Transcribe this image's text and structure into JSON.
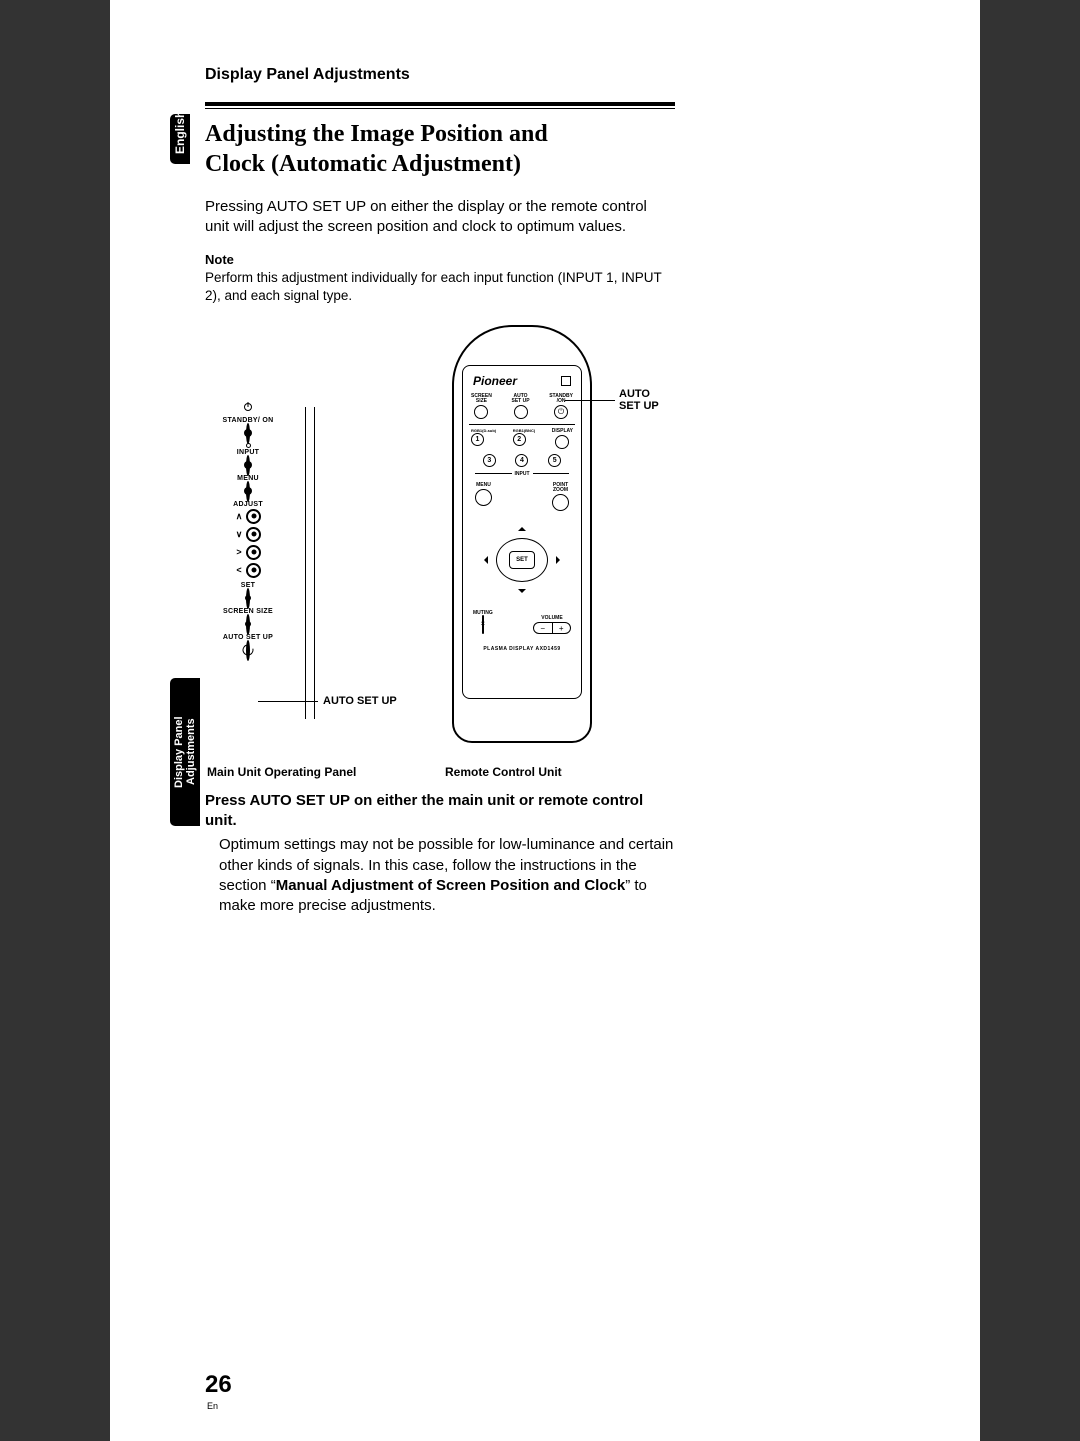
{
  "header": "Display Panel Adjustments",
  "title_line1": "Adjusting the Image Position and",
  "title_line2": "Clock (Automatic Adjustment)",
  "intro": "Pressing AUTO SET UP on either the display or the remote control unit will adjust the screen position and clock to optimum values.",
  "note_label": "Note",
  "note_text": "Perform this adjustment individually for each input function (INPUT 1, INPUT 2), and each signal type.",
  "main_unit": {
    "standby_on": "STANDBY/ ON",
    "input": "INPUT",
    "menu": "MENU",
    "adjust": "ADJUST",
    "set": "SET",
    "screen_size": "SCREEN SIZE",
    "auto_set_up": "AUTO SET UP",
    "callout": "AUTO SET UP"
  },
  "captions": {
    "main": "Main Unit Operating Panel",
    "remote": "Remote Control Unit"
  },
  "remote": {
    "brand": "Pioneer",
    "screen_size": "SCREEN\nSIZE",
    "auto_setup": "AUTO\nSET UP",
    "standby_on": "STANDBY\n/ON",
    "row2_a": "RGB1(D-sub)",
    "row2_b": "RGB1(BNC)",
    "display": "DISPLAY",
    "input_nums": [
      "1",
      "2",
      "3",
      "4",
      "5"
    ],
    "input_label": "INPUT",
    "menu": "MENU",
    "point_zoom": "POINT\nZOOM",
    "set": "SET",
    "muting": "MUTING",
    "volume": "VOLUME",
    "model": "PLASMA DISPLAY   AXD1459",
    "callout_line1": "AUTO",
    "callout_line2": "SET UP"
  },
  "instruction_bold": "Press AUTO SET UP on either the main unit or remote control unit.",
  "instruction_body_1": "Optimum settings may not be possible for low-luminance and certain other kinds of signals. In this case, follow the instructions in the section “",
  "instruction_body_bold": "Manual Adjustment of Screen Position and Clock",
  "instruction_body_2": "” to make more precise adjustments.",
  "tabs": {
    "english": "English",
    "display_panel": "Display Panel Adjustments"
  },
  "page_number": "26",
  "page_lang": "En",
  "colors": {
    "page_bg": "#ffffff",
    "outer_bg": "#333333",
    "text": "#000000"
  }
}
